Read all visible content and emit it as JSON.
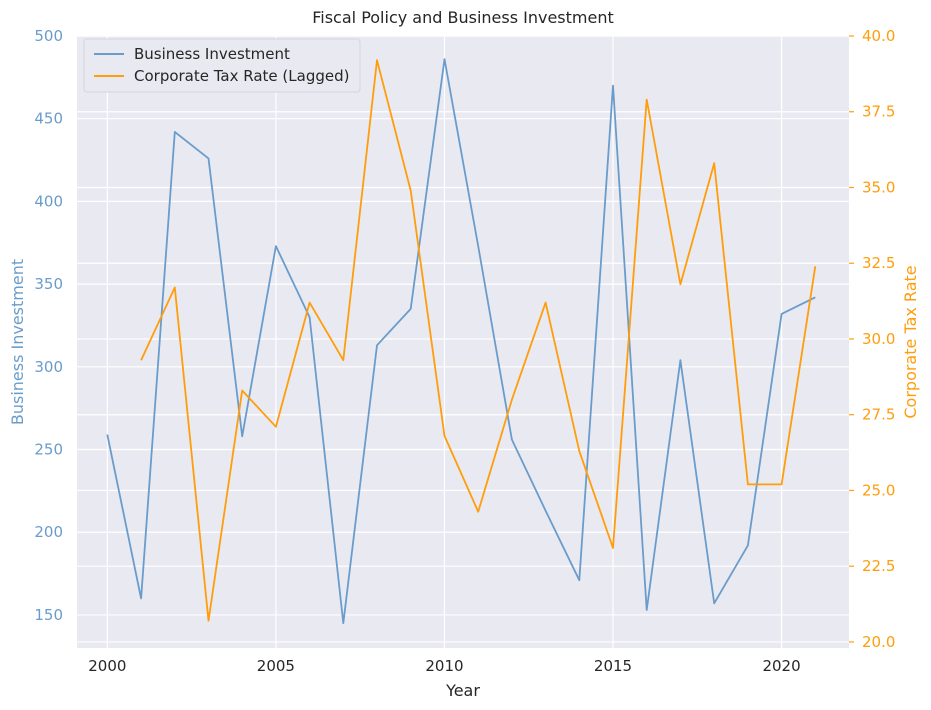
{
  "chart_data": {
    "type": "line",
    "title": "Fiscal Policy and Business Investment",
    "xlabel": "Year",
    "ylabel_left": "Business Investment",
    "ylabel_right": "Corporate Tax Rate",
    "xlim": [
      1999.1,
      2022.0
    ],
    "ylim_left": [
      130,
      500
    ],
    "ylim_right": [
      19.8,
      40.0
    ],
    "x_ticks": [
      2000,
      2005,
      2010,
      2015,
      2020
    ],
    "y_ticks_left": [
      150,
      200,
      250,
      300,
      350,
      400,
      450,
      500
    ],
    "y_ticks_right": [
      20.0,
      22.5,
      25.0,
      27.5,
      30.0,
      32.5,
      35.0,
      37.5,
      40.0
    ],
    "grid": true,
    "legend_position": "top-left",
    "colors": {
      "investment": "#6a9ccb",
      "tax": "#ff9d0a",
      "plot_bg": "#e9e9f1",
      "grid": "#ffffff",
      "text": "#262626"
    },
    "series": [
      {
        "name": "Business Investment",
        "axis": "left",
        "x": [
          2000,
          2001,
          2002,
          2003,
          2004,
          2005,
          2006,
          2007,
          2008,
          2009,
          2010,
          2011,
          2012,
          2013,
          2014,
          2015,
          2016,
          2017,
          2018,
          2019,
          2020,
          2021
        ],
        "values": [
          259,
          160,
          442,
          426,
          258,
          373,
          330,
          145,
          313,
          335,
          486,
          373,
          256,
          213,
          171,
          470,
          153,
          304,
          157,
          192,
          332,
          342
        ]
      },
      {
        "name": "Corporate Tax Rate (Lagged)",
        "axis": "right",
        "x": [
          2001,
          2002,
          2003,
          2004,
          2005,
          2006,
          2007,
          2008,
          2009,
          2010,
          2011,
          2012,
          2013,
          2014,
          2015,
          2016,
          2017,
          2018,
          2019,
          2020,
          2021
        ],
        "values": [
          29.3,
          31.7,
          20.7,
          28.3,
          27.1,
          31.2,
          29.3,
          39.2,
          34.9,
          26.8,
          24.3,
          28.0,
          31.2,
          26.3,
          23.1,
          37.9,
          31.8,
          35.8,
          25.2,
          25.2,
          32.4
        ]
      }
    ]
  }
}
